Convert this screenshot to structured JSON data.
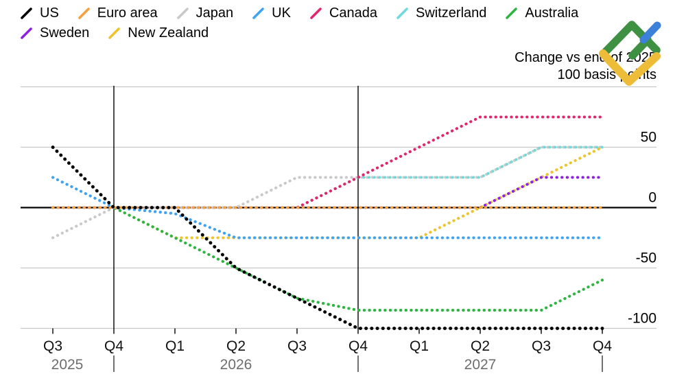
{
  "legend": {
    "rows": [
      [
        {
          "label": "US",
          "color": "#000000"
        },
        {
          "label": "Euro area",
          "color": "#F6A13B"
        },
        {
          "label": "Japan",
          "color": "#C9C9C9"
        },
        {
          "label": "UK",
          "color": "#3FA3F2"
        },
        {
          "label": "Canada",
          "color": "#E1256F"
        },
        {
          "label": "Switzerland",
          "color": "#6FD9DC"
        },
        {
          "label": "Australia",
          "color": "#2EB440"
        }
      ],
      [
        {
          "label": "Sweden",
          "color": "#8C22E2"
        },
        {
          "label": "New Zealand",
          "color": "#ECC42E"
        }
      ]
    ]
  },
  "annotation": {
    "line1": "Change vs end of 2025",
    "line2": "100 basis points"
  },
  "logo": {
    "green": "#3E9142",
    "blue": "#3C80D8",
    "yellow": "#EDBD3A"
  },
  "colors": {
    "grid": "#C8C8C8",
    "axis": "#000000",
    "separator": "#000000",
    "tick": "#000000",
    "y_label": "#000000",
    "quarter_label": "#111111",
    "year_label": "#6E6E6E",
    "year_separator": "#333333"
  },
  "chart_data": {
    "type": "line",
    "style": "dotted",
    "x_categories": [
      "Q3 2025",
      "Q4 2025",
      "Q1 2026",
      "Q2 2026",
      "Q3 2026",
      "Q4 2026",
      "Q1 2027",
      "Q2 2027",
      "Q3 2027",
      "Q4 2027"
    ],
    "x_quarter_labels": [
      "Q3",
      "Q4",
      "Q1",
      "Q2",
      "Q3",
      "Q4",
      "Q1",
      "Q2",
      "Q3",
      "Q4"
    ],
    "x_year_labels": [
      "2025",
      "2026",
      "2027"
    ],
    "ylim": [
      -110,
      110
    ],
    "yticks": [
      {
        "value": 50,
        "label": "50"
      },
      {
        "value": 0,
        "label": "0"
      },
      {
        "value": -50,
        "label": "-50"
      },
      {
        "value": -100,
        "label": "-100"
      }
    ],
    "gridlines": [
      100,
      50,
      -50,
      -100
    ],
    "zero_axis": 0,
    "separators": {
      "full_after_index": [
        1,
        5
      ],
      "short_after_index": [
        9
      ]
    },
    "legend_position": "top-left",
    "series": [
      {
        "name": "US",
        "color": "#000000",
        "values": [
          50,
          0,
          0,
          -50,
          -75,
          -100,
          -100,
          -100,
          -100,
          -100
        ]
      },
      {
        "name": "Euro area",
        "color": "#F6A13B",
        "values": [
          0,
          0,
          0,
          0,
          0,
          0,
          0,
          0,
          0,
          0
        ]
      },
      {
        "name": "Japan",
        "color": "#C9C9C9",
        "values": [
          -25,
          0,
          0,
          0,
          25,
          25,
          25,
          25,
          50,
          50
        ]
      },
      {
        "name": "UK",
        "color": "#3FA3F2",
        "values": [
          25,
          0,
          -5,
          -25,
          -25,
          -25,
          -25,
          -25,
          -25,
          -25
        ]
      },
      {
        "name": "Canada",
        "color": "#E1256F",
        "values": [
          0,
          0,
          0,
          0,
          0,
          25,
          50,
          75,
          75,
          75
        ]
      },
      {
        "name": "Switzerland",
        "color": "#74D9D8",
        "values": [
          0,
          0,
          0,
          0,
          0,
          25,
          25,
          25,
          50,
          50
        ]
      },
      {
        "name": "Australia",
        "color": "#2EB440",
        "values": [
          0,
          0,
          -25,
          -50,
          -75,
          -85,
          -85,
          -85,
          -85,
          -60
        ]
      },
      {
        "name": "Sweden",
        "color": "#8C22E2",
        "values": [
          0,
          0,
          0,
          0,
          0,
          0,
          0,
          0,
          25,
          25
        ]
      },
      {
        "name": "New Zealand",
        "color": "#ECC42E",
        "values": [
          0,
          0,
          -25,
          -25,
          -25,
          -25,
          -25,
          0,
          25,
          50
        ]
      }
    ],
    "draw_order": [
      "Japan",
      "New Zealand",
      "Australia",
      "UK",
      "Sweden",
      "Switzerland",
      "Canada",
      "Euro area",
      "US"
    ]
  }
}
